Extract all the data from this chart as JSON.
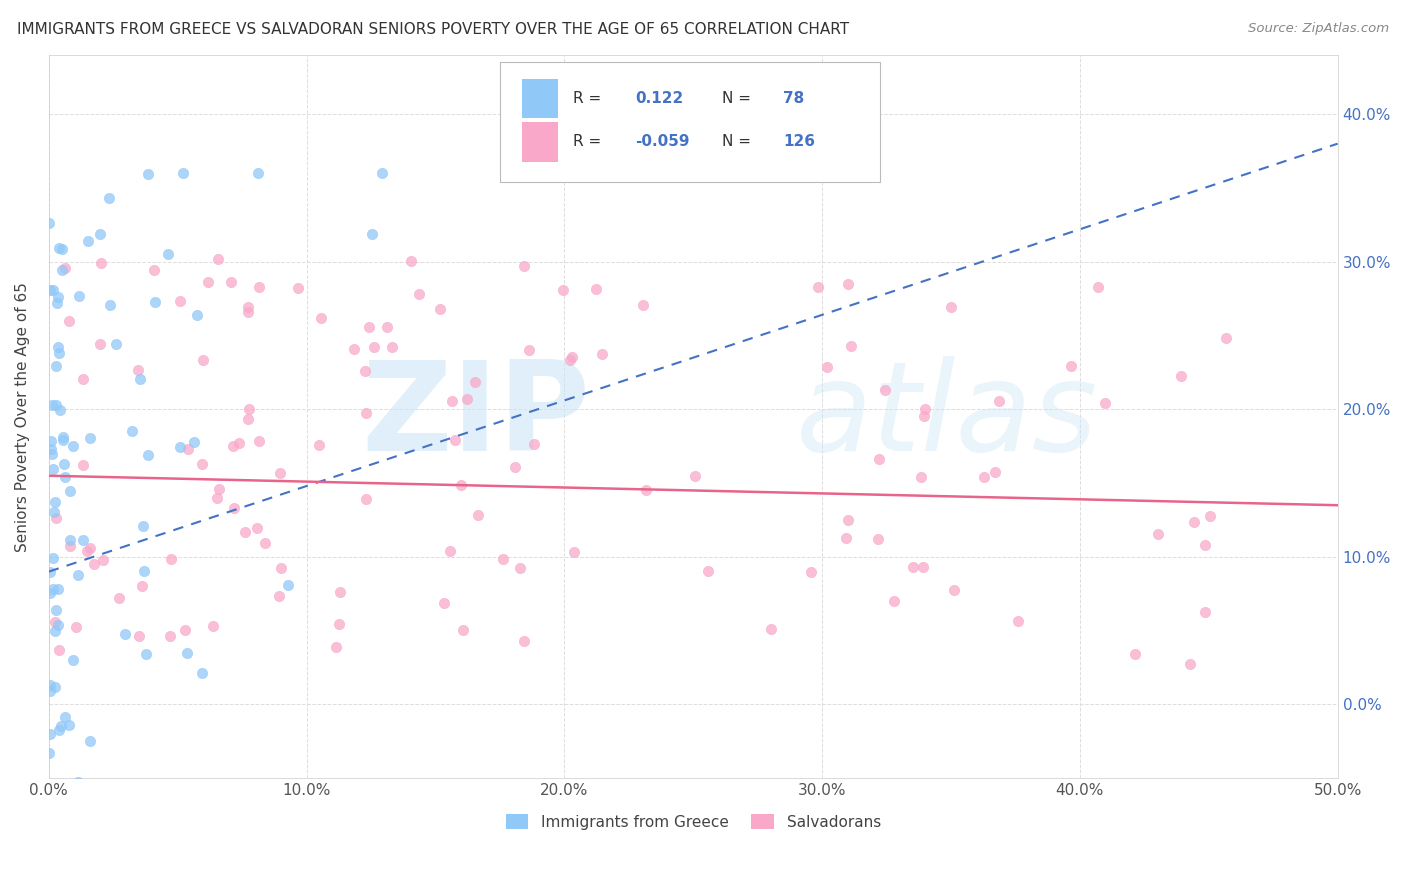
{
  "title": "IMMIGRANTS FROM GREECE VS SALVADORAN SENIORS POVERTY OVER THE AGE OF 65 CORRELATION CHART",
  "source": "Source: ZipAtlas.com",
  "ylabel": "Seniors Poverty Over the Age of 65",
  "xlim": [
    0.0,
    0.5
  ],
  "ylim": [
    -0.05,
    0.44
  ],
  "xticks": [
    0.0,
    0.1,
    0.2,
    0.3,
    0.4,
    0.5
  ],
  "xticklabels": [
    "0.0%",
    "10.0%",
    "20.0%",
    "30.0%",
    "40.0%",
    "50.0%"
  ],
  "yticks_right": [
    0.0,
    0.1,
    0.2,
    0.3,
    0.4
  ],
  "yticklabels_right": [
    "0.0%",
    "10.0%",
    "20.0%",
    "30.0%",
    "40.0%"
  ],
  "greece_color": "#90c8f8",
  "salvadoran_color": "#f9a8c9",
  "greece_line_color": "#4472c4",
  "salvadoran_line_color": "#e8648a",
  "R_greece": 0.122,
  "N_greece": 78,
  "R_salvadoran": -0.059,
  "N_salvadoran": 126,
  "legend_labels": [
    "Immigrants from Greece",
    "Salvadorans"
  ],
  "watermark_zip": "ZIP",
  "watermark_atlas": "atlas",
  "background_color": "#ffffff",
  "figsize": [
    14.06,
    8.92
  ],
  "dpi": 100
}
